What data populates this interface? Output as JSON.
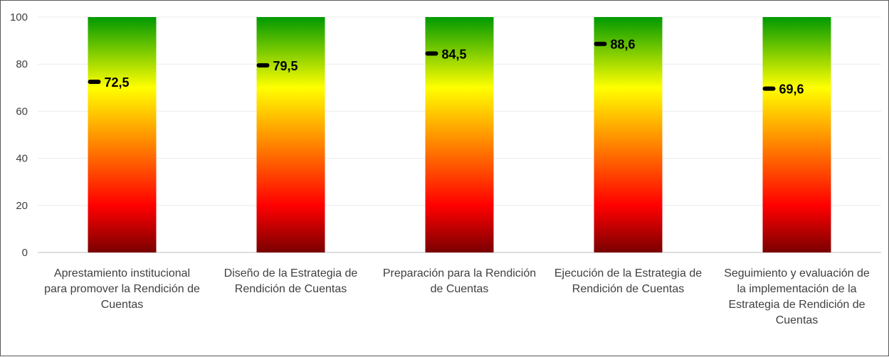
{
  "chart_data": {
    "type": "bar",
    "categories": [
      "Apresta­miento institucional para promover la Rendición de Cuentas",
      "Diseño de la Estrategia de Rendición de Cuentas",
      "Preparación para la Rendición de Cuentas",
      "Ejecución de la Estrategia de Rendición de Cuentas",
      "Seguimiento y evaluación de la implementación de la Estrategia de Rendición de Cuentas"
    ],
    "category_lines": [
      [
        "Apresta­miento institucional",
        "para promover la Rendición de",
        "Cuentas"
      ],
      [
        "Diseño de la Estrategia de",
        "Rendición de Cuentas"
      ],
      [
        "Preparación para la Rendición",
        "de Cuentas"
      ],
      [
        "Ejecución de la Estrategia de",
        "Rendición de Cuentas"
      ],
      [
        "Seguimiento y evaluación de",
        "la implementación de la",
        "Estrategia de Rendición de",
        "Cuentas"
      ]
    ],
    "series": [
      {
        "values": [
          100,
          100,
          100,
          100,
          100
        ]
      },
      {
        "values": [
          72.5,
          79.5,
          84.5,
          88.6,
          69.6
        ]
      }
    ],
    "value_labels": [
      "72,5",
      "79,5",
      "84,5",
      "88,6",
      "69,6"
    ],
    "ylim": [
      0,
      100
    ],
    "yticks": [
      0,
      20,
      40,
      60,
      80,
      100
    ],
    "gradient_colors": {
      "bottom": "#7a0000",
      "low": "#ff0000",
      "mid": "#ffff00",
      "top": "#009900"
    },
    "marker_color": "#000000",
    "grid": true,
    "legend": "none"
  }
}
